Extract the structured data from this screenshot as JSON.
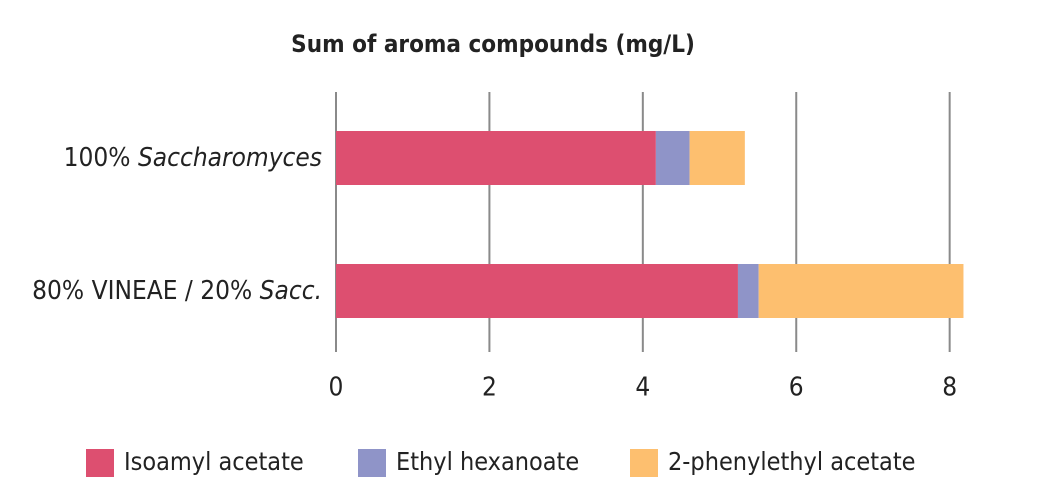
{
  "chart_data": {
    "type": "stacked-barh",
    "title": "Sum of aroma compounds (mg/L)",
    "categories": [
      "100% Saccharomyces",
      "80% VINEAE / 20% Sacc."
    ],
    "series": [
      {
        "name": "Isoamyl acetate",
        "color": "#dd4f70",
        "values": [
          4.17,
          5.24
        ]
      },
      {
        "name": "Ethyl hexanoate",
        "color": "#8f94c8",
        "values": [
          0.44,
          0.27
        ]
      },
      {
        "name": "2-phenylethyl acetate",
        "color": "#fdbf6f",
        "values": [
          0.72,
          2.67
        ]
      }
    ],
    "xlim": [
      0,
      8.2
    ],
    "xticks": [
      0,
      2,
      4,
      6,
      8
    ],
    "grid": true
  }
}
